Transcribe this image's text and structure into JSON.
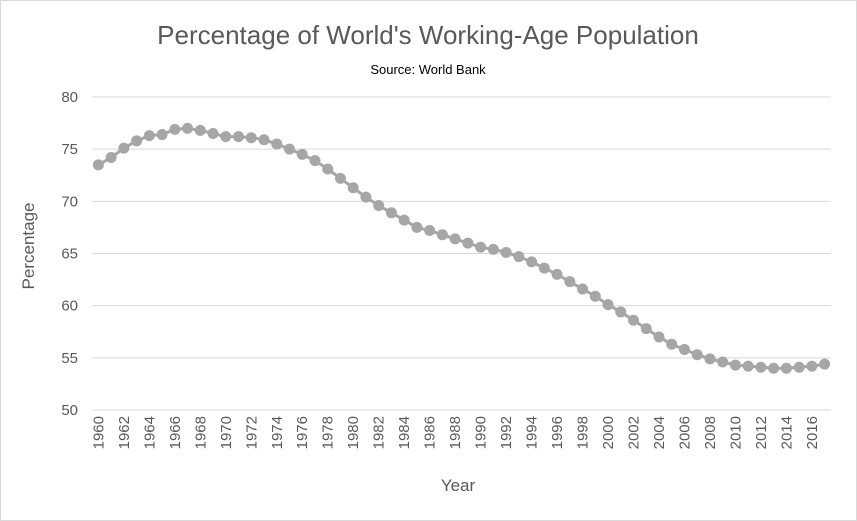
{
  "chart_data": {
    "type": "line",
    "title": "Percentage of World's Working-Age Population",
    "subtitle": "Source: World Bank",
    "xlabel": "Year",
    "ylabel": "Percentage",
    "ylim": [
      50,
      80
    ],
    "yticks": [
      "50",
      "55",
      "60",
      "65",
      "70",
      "75",
      "80"
    ],
    "xticks": [
      "1960",
      "1962",
      "1964",
      "1966",
      "1968",
      "1970",
      "1972",
      "1974",
      "1976",
      "1978",
      "1980",
      "1982",
      "1984",
      "1986",
      "1988",
      "1990",
      "1992",
      "1994",
      "1996",
      "1998",
      "2000",
      "2002",
      "2004",
      "2006",
      "2008",
      "2010",
      "2012",
      "2014",
      "2016"
    ],
    "grid": true,
    "legend": "none",
    "series": [
      {
        "color": "#a6a6a6",
        "x": [
          1960,
          1961,
          1962,
          1963,
          1964,
          1965,
          1966,
          1967,
          1968,
          1969,
          1970,
          1971,
          1972,
          1973,
          1974,
          1975,
          1976,
          1977,
          1978,
          1979,
          1980,
          1981,
          1982,
          1983,
          1984,
          1985,
          1986,
          1987,
          1988,
          1989,
          1990,
          1991,
          1992,
          1993,
          1994,
          1995,
          1996,
          1997,
          1998,
          1999,
          2000,
          2001,
          2002,
          2003,
          2004,
          2005,
          2006,
          2007,
          2008,
          2009,
          2010,
          2011,
          2012,
          2013,
          2014,
          2015,
          2016,
          2017
        ],
        "values": [
          73.5,
          74.2,
          75.1,
          75.8,
          76.3,
          76.4,
          76.9,
          77.0,
          76.8,
          76.5,
          76.2,
          76.2,
          76.1,
          75.9,
          75.5,
          75.0,
          74.5,
          73.9,
          73.1,
          72.2,
          71.3,
          70.4,
          69.6,
          68.9,
          68.2,
          67.5,
          67.2,
          66.8,
          66.4,
          66.0,
          65.6,
          65.4,
          65.1,
          64.7,
          64.2,
          63.6,
          63.0,
          62.3,
          61.6,
          60.9,
          60.1,
          59.4,
          58.6,
          57.8,
          57.0,
          56.3,
          55.8,
          55.3,
          54.9,
          54.6,
          54.3,
          54.2,
          54.1,
          54.0,
          54.0,
          54.1,
          54.2,
          54.4
        ]
      }
    ]
  }
}
